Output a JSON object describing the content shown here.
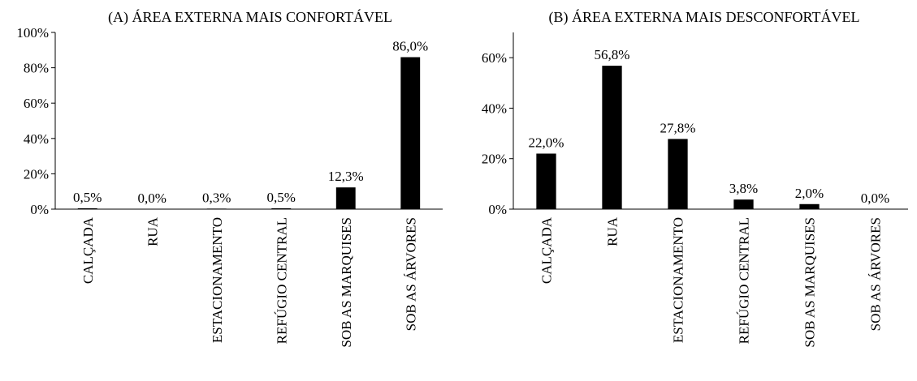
{
  "chart_data": [
    {
      "type": "bar",
      "title": "(A) ÁREA EXTERNA MAIS CONFORTÁVEL",
      "categories": [
        "CALÇADA",
        "RUA",
        "ESTACIONAMENTO",
        "REFÚGIO CENTRAL",
        "SOB AS MARQUISES",
        "SOB AS ÁRVORES"
      ],
      "values": [
        0.5,
        0.0,
        0.3,
        0.5,
        12.3,
        86.0
      ],
      "data_labels": [
        "0,5%",
        "0,0%",
        "0,3%",
        "0,5%",
        "12,3%",
        "86,0%"
      ],
      "ylim": [
        0,
        100
      ],
      "yticks": [
        0,
        20,
        40,
        60,
        80,
        100
      ],
      "ytick_labels": [
        "0%",
        "20%",
        "40%",
        "60%",
        "80%",
        "100%"
      ],
      "grid": false,
      "bar_color": "#000000"
    },
    {
      "type": "bar",
      "title": "(B) ÁREA EXTERNA MAIS DESCONFORTÁVEL",
      "categories": [
        "CALÇADA",
        "RUA",
        "ESTACIONAMENTO",
        "REFÚGIO CENTRAL",
        "SOB AS MARQUISES",
        "SOB AS ÁRVORES"
      ],
      "values": [
        22.0,
        56.8,
        27.8,
        3.8,
        2.0,
        0.0
      ],
      "data_labels": [
        "22,0%",
        "56,8%",
        "27,8%",
        "3,8%",
        "2,0%",
        "0,0%"
      ],
      "ylim": [
        0,
        70
      ],
      "yticks": [
        0,
        20,
        40,
        60
      ],
      "ytick_labels": [
        "0%",
        "20%",
        "40%",
        "60%"
      ],
      "grid": false,
      "bar_color": "#000000"
    }
  ]
}
